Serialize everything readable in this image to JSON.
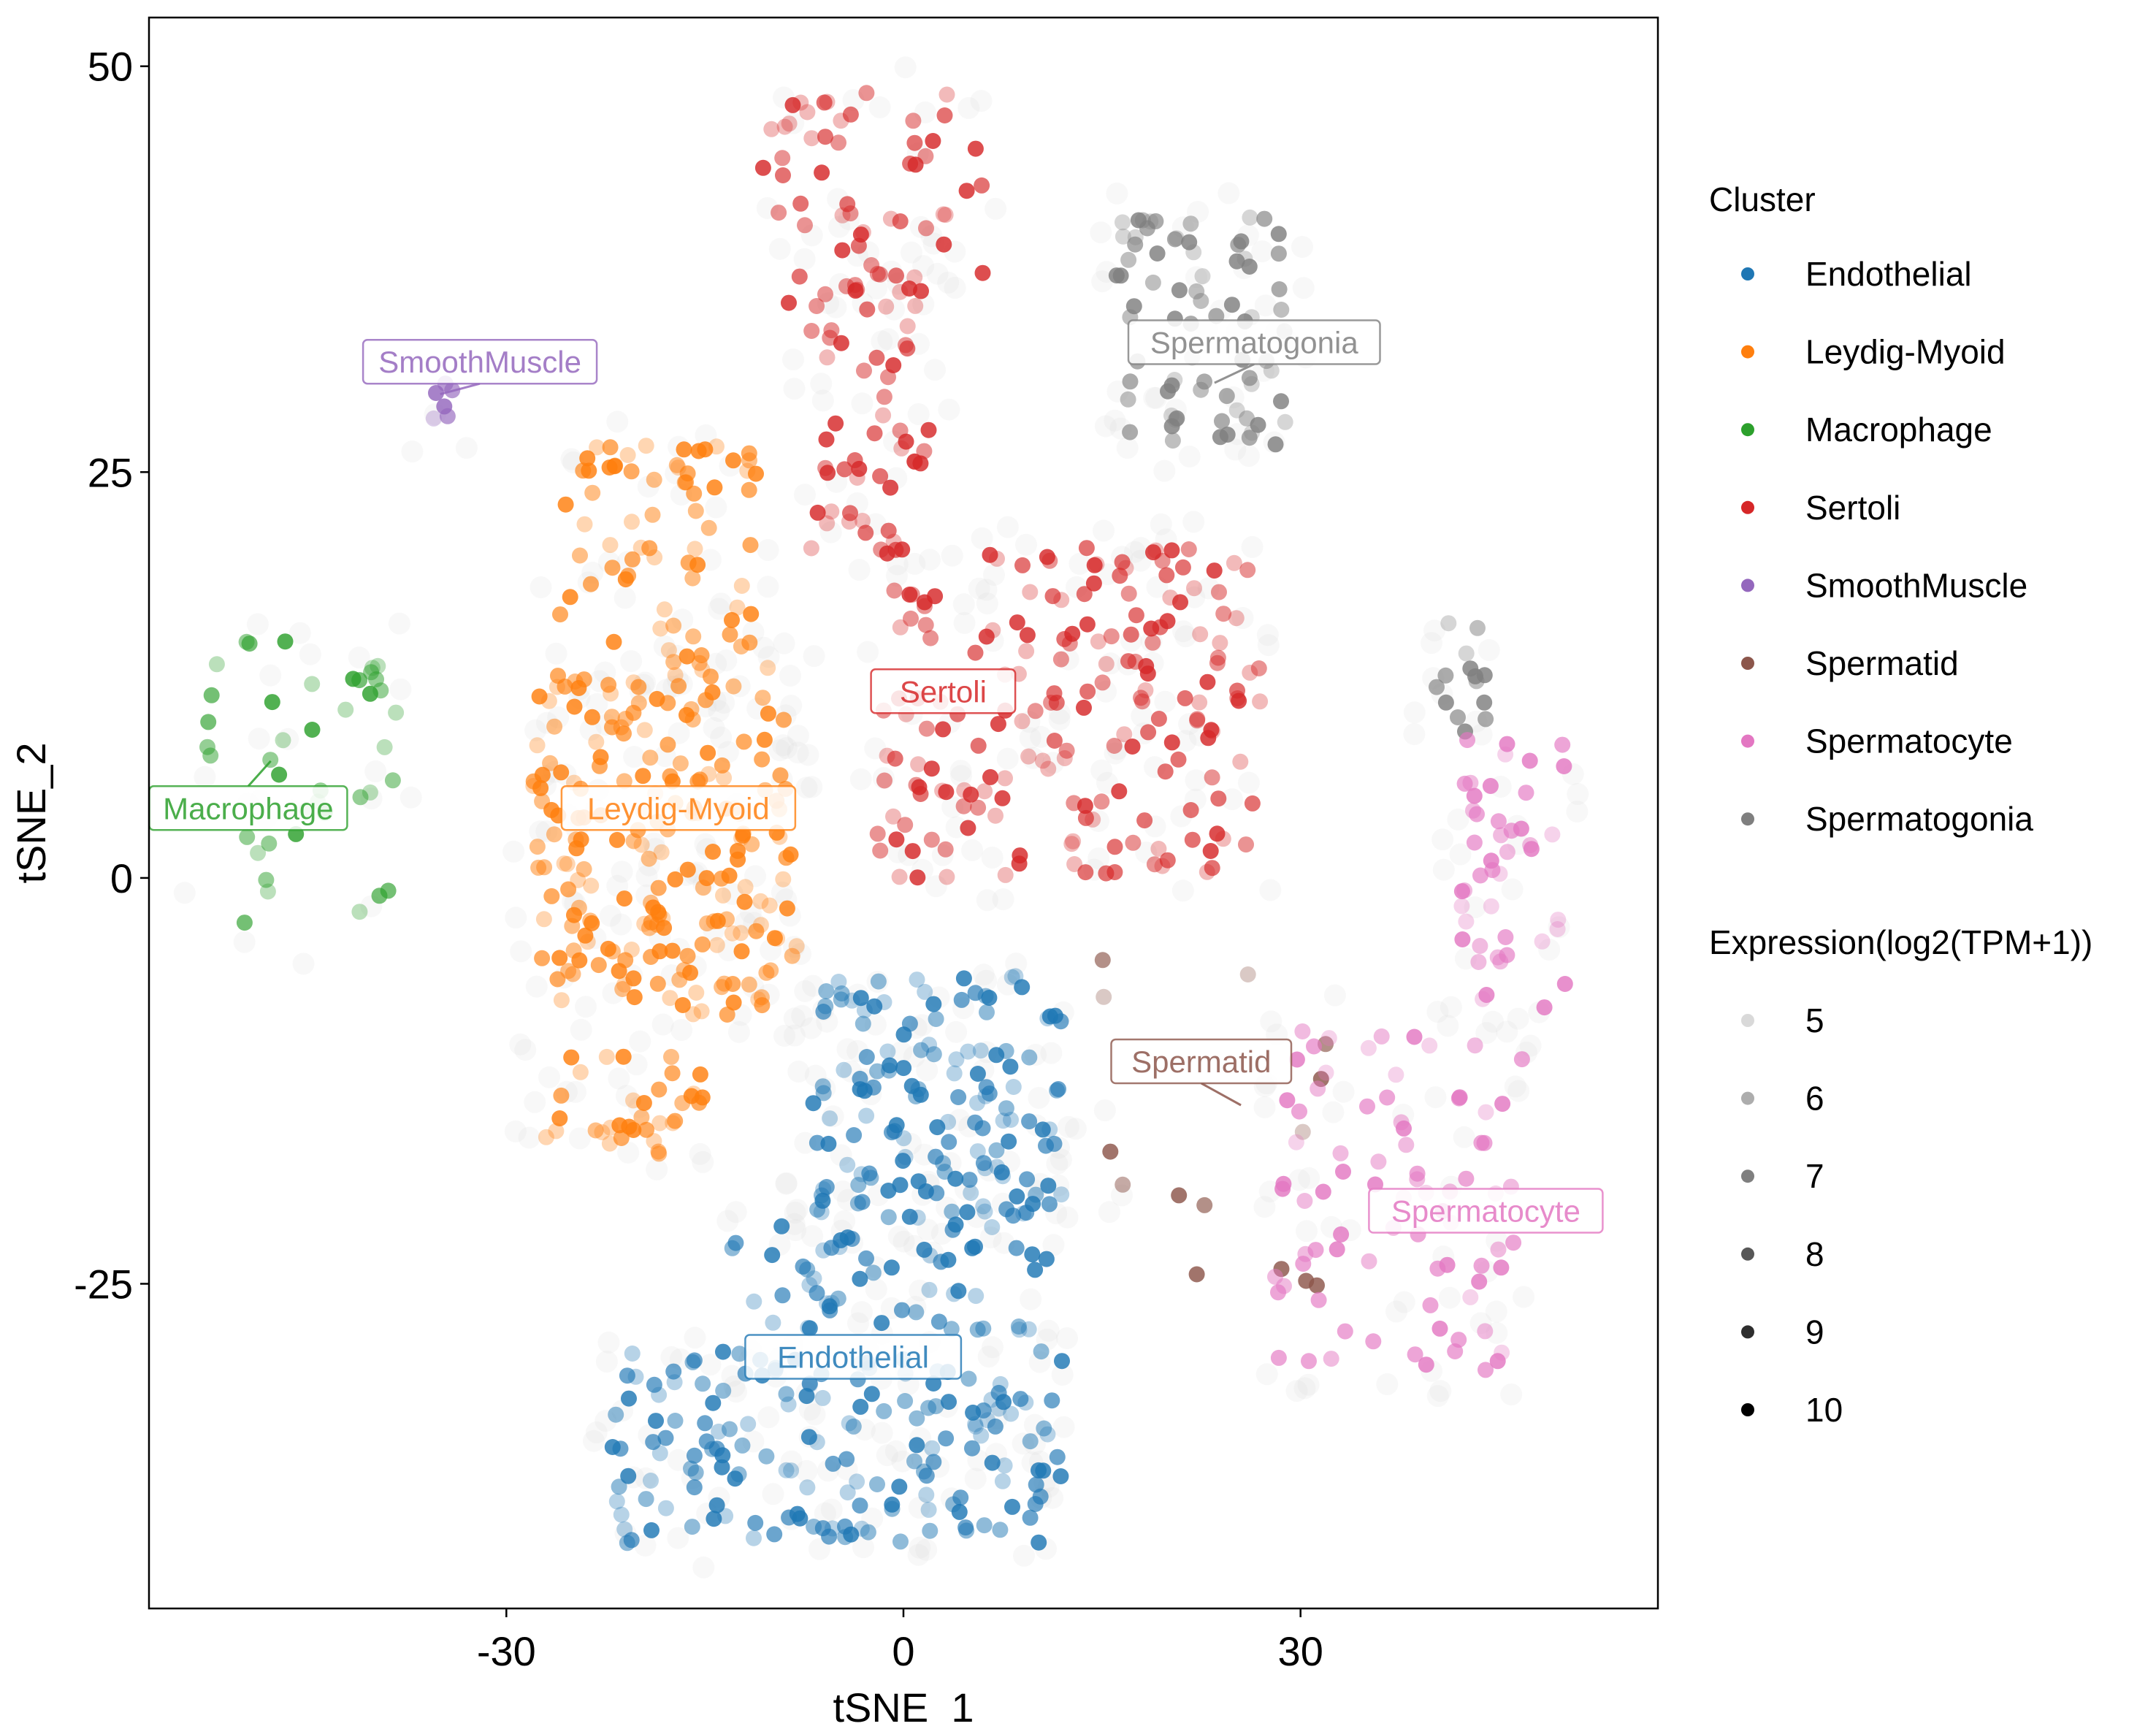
{
  "chart_data": {
    "type": "scatter",
    "title": "",
    "xlabel": "tSNE_1",
    "ylabel": "tSNE_2",
    "xlim": [
      -57,
      57
    ],
    "ylim": [
      -45,
      53
    ],
    "x_ticks": [
      -30,
      0,
      30
    ],
    "y_ticks": [
      -25,
      0,
      25,
      50
    ],
    "grid": false,
    "legend_position": "right",
    "color_legend": {
      "title": "Cluster",
      "entries": [
        {
          "name": "Endothelial",
          "color": "#1F77B4"
        },
        {
          "name": "Leydig-Myoid",
          "color": "#FF7F0E"
        },
        {
          "name": "Macrophage",
          "color": "#2CA02C"
        },
        {
          "name": "Sertoli",
          "color": "#D62728"
        },
        {
          "name": "SmoothMuscle",
          "color": "#9467BD"
        },
        {
          "name": "Spermatid",
          "color": "#8C564B"
        },
        {
          "name": "Spermatocyte",
          "color": "#E377C2"
        },
        {
          "name": "Spermatogonia",
          "color": "#7F7F7F"
        }
      ]
    },
    "alpha_legend": {
      "title": "Expression(log2(TPM+1))",
      "values": [
        "5",
        "6",
        "7",
        "8",
        "9",
        "10"
      ],
      "alphas": [
        0.15,
        0.32,
        0.5,
        0.66,
        0.82,
        1.0
      ]
    },
    "cluster_labels": [
      {
        "text": "Sertoli",
        "x": 3,
        "y": 11.5,
        "anchor_x": 3,
        "anchor_y": 11.5,
        "color": "#D62728"
      },
      {
        "text": "Spermatogonia",
        "x": 26.5,
        "y": 33,
        "anchor_x": 23.5,
        "anchor_y": 30.5,
        "color": "#7F7F7F"
      },
      {
        "text": "SmoothMuscle",
        "x": -32,
        "y": 31.8,
        "anchor_x": -35,
        "anchor_y": 29.8,
        "color": "#9467BD"
      },
      {
        "text": "Macrophage",
        "x": -49.5,
        "y": 4.3,
        "anchor_x": -47.8,
        "anchor_y": 7.2,
        "color": "#2CA02C"
      },
      {
        "text": "Leydig-Myoid",
        "x": -17,
        "y": 4.3,
        "anchor_x": -17,
        "anchor_y": 4.3,
        "color": "#FF7F0E"
      },
      {
        "text": "Spermatid",
        "x": 22.5,
        "y": -11.3,
        "anchor_x": 25.5,
        "anchor_y": -14,
        "color": "#8C564B"
      },
      {
        "text": "Spermatocyte",
        "x": 44,
        "y": -20.5,
        "anchor_x": 44,
        "anchor_y": -20.5,
        "color": "#E377C2"
      },
      {
        "text": "Endothelial",
        "x": -3.8,
        "y": -29.5,
        "anchor_x": -3.8,
        "anchor_y": -29.5,
        "color": "#1F77B4"
      }
    ],
    "series": [
      {
        "name": "Sertoli",
        "color": "#D62728",
        "regions": [
          {
            "x": [
              -11,
              6
            ],
            "y": [
              35,
              48.5
            ],
            "n": 55
          },
          {
            "x": [
              -7,
              2
            ],
            "y": [
              20,
              38
            ],
            "n": 55
          },
          {
            "x": [
              -2,
              27
            ],
            "y": [
              0,
              20.5
            ],
            "n": 190
          }
        ]
      },
      {
        "name": "Spermatogonia",
        "color": "#7F7F7F",
        "regions": [
          {
            "x": [
              16,
              29
            ],
            "y": [
              26.5,
              41
            ],
            "n": 75
          },
          {
            "x": [
              40,
              44
            ],
            "y": [
              9,
              16
            ],
            "n": 14
          }
        ]
      },
      {
        "name": "SmoothMuscle",
        "color": "#9467BD",
        "regions": [
          {
            "x": [
              -36,
              -34
            ],
            "y": [
              27.5,
              30.5
            ],
            "n": 6
          }
        ]
      },
      {
        "name": "Macrophage",
        "color": "#2CA02C",
        "regions": [
          {
            "x": [
              -54,
              -38
            ],
            "y": [
              -4.5,
              15
            ],
            "n": 42
          }
        ]
      },
      {
        "name": "Leydig-Myoid",
        "color": "#FF7F0E",
        "regions": [
          {
            "x": [
              -26,
              -11
            ],
            "y": [
              13,
              27
            ],
            "n": 70
          },
          {
            "x": [
              -28,
              -8
            ],
            "y": [
              -8.5,
              13
            ],
            "n": 210
          },
          {
            "x": [
              -28,
              -15
            ],
            "y": [
              -17,
              -11
            ],
            "n": 35
          }
        ]
      },
      {
        "name": "Endothelial",
        "color": "#1F77B4",
        "regions": [
          {
            "x": [
              -7,
              12
            ],
            "y": [
              -21,
              -6
            ],
            "n": 140
          },
          {
            "x": [
              -13,
              11
            ],
            "y": [
              -28,
              -20
            ],
            "n": 60
          },
          {
            "x": [
              -22,
              12
            ],
            "y": [
              -41,
              -29
            ],
            "n": 170
          }
        ]
      },
      {
        "name": "Spermatid",
        "color": "#8C564B",
        "regions": [
          {
            "x": [
              15,
              33
            ],
            "y": [
              -26,
              -4
            ],
            "n": 14
          }
        ]
      },
      {
        "name": "Spermatocyte",
        "color": "#E377C2",
        "regions": [
          {
            "x": [
              42,
              50
            ],
            "y": [
              -9,
              9
            ],
            "n": 45
          },
          {
            "x": [
              28,
              47
            ],
            "y": [
              -30.5,
              -9
            ],
            "n": 80
          }
        ]
      }
    ]
  }
}
